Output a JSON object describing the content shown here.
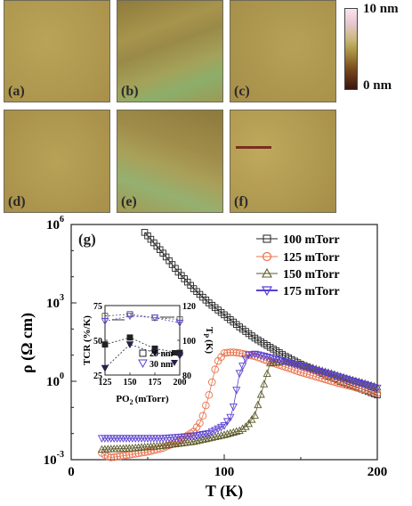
{
  "afm_panels": [
    {
      "label": "(a)",
      "base_color": "#b09a50"
    },
    {
      "label": "(b)",
      "base_color": "#9a8a48"
    },
    {
      "label": "(c)",
      "base_color": "#ad9850"
    },
    {
      "label": "(d)",
      "base_color": "#ad9851"
    },
    {
      "label": "(e)",
      "base_color": "#9f8d4a"
    },
    {
      "label": "(f)",
      "base_color": "#a8924d"
    }
  ],
  "colorbar": {
    "max_label": "10 nm",
    "min_label": "0 nm"
  },
  "chart_data": [
    {
      "type": "line",
      "panel_label": "(g)",
      "xlabel": "T (K)",
      "ylabel": "ρ (Ω cm)",
      "xlim": [
        0,
        200
      ],
      "ylim_log10": [
        -3,
        6
      ],
      "y_scale": "log",
      "x_ticks": [
        "0",
        "100",
        "200"
      ],
      "y_ticks": [
        "10",
        "10",
        "10",
        "10"
      ],
      "y_tick_exponents": [
        "-3",
        "0",
        "3",
        "6"
      ],
      "legend_position": "top-right",
      "series": [
        {
          "name": "100 mTorr",
          "color": "#222222",
          "marker": "square",
          "x": [
            48,
            60,
            70,
            80,
            90,
            100,
            110,
            120,
            130,
            140,
            150,
            160,
            170,
            180,
            190,
            200
          ],
          "y": [
            500000.0,
            80000.0,
            15000.0,
            3500,
            1000,
            350,
            120,
            45,
            20,
            9,
            4.5,
            2.5,
            1.4,
            0.8,
            0.5,
            0.3
          ]
        },
        {
          "name": "125 mTorr",
          "color": "#e8704a",
          "marker": "circle",
          "x": [
            20,
            25,
            30,
            40,
            50,
            60,
            70,
            80,
            85,
            90,
            95,
            100,
            105,
            110,
            120,
            130,
            140,
            150,
            160,
            170,
            180,
            190,
            200
          ],
          "y": [
            0.0018,
            0.0012,
            0.0013,
            0.0016,
            0.002,
            0.0028,
            0.005,
            0.012,
            0.03,
            0.3,
            5,
            12,
            13,
            12,
            9,
            5.5,
            3.5,
            2.2,
            1.5,
            1.0,
            0.7,
            0.5,
            0.35
          ]
        },
        {
          "name": "150 mTorr",
          "color": "#5e5a2a",
          "marker": "triangle-up",
          "x": [
            20,
            40,
            60,
            80,
            100,
            110,
            115,
            120,
            125,
            130,
            140,
            150,
            160,
            170,
            180,
            190,
            200
          ],
          "y": [
            0.0025,
            0.0028,
            0.0035,
            0.005,
            0.009,
            0.013,
            0.02,
            0.05,
            0.5,
            5,
            6,
            4.5,
            3,
            2,
            1.3,
            0.9,
            0.6
          ]
        },
        {
          "name": "175 mTorr",
          "color": "#5a3fd0",
          "marker": "triangle-down",
          "x": [
            20,
            40,
            60,
            80,
            90,
            100,
            105,
            110,
            115,
            120,
            130,
            140,
            150,
            160,
            170,
            180,
            190,
            200
          ],
          "y": [
            0.0065,
            0.0065,
            0.0065,
            0.008,
            0.01,
            0.02,
            0.05,
            2,
            10,
            11,
            8,
            5.5,
            3.8,
            2.6,
            1.8,
            1.2,
            0.8,
            0.55
          ]
        }
      ]
    },
    {
      "type": "line",
      "inset": true,
      "xlabel": "PO",
      "xlabel_sub": "2",
      "xlabel_unit": "(mTorr)",
      "ylabel_left": "TCR (%/K)",
      "ylabel_right": "T",
      "ylabel_right_sub": "P",
      "ylabel_right_unit": "(K)",
      "xlim": [
        125,
        200
      ],
      "ylim_left": [
        25,
        75
      ],
      "ylim_right": [
        80,
        120
      ],
      "x_ticks": [
        "125",
        "150",
        "175",
        "200"
      ],
      "y_ticks_left": [
        "25",
        "50",
        "75"
      ],
      "y_ticks_right": [
        "80",
        "100",
        "120"
      ],
      "series": [
        {
          "name": "20 nm",
          "axis": "right",
          "marker": "square",
          "x": [
            125,
            150,
            175,
            200
          ],
          "y": [
            114,
            115,
            113,
            112
          ]
        },
        {
          "name": "30 nm",
          "axis": "right",
          "marker": "triangle-down",
          "x": [
            125,
            150,
            175,
            200
          ],
          "y": [
            111,
            114,
            113,
            110
          ]
        },
        {
          "name": "TCR 20 nm",
          "axis": "left",
          "marker": "square",
          "x": [
            125,
            150,
            175,
            200
          ],
          "y": [
            47,
            52,
            44,
            41
          ]
        },
        {
          "name": "TCR 30 nm",
          "axis": "left",
          "marker": "triangle-down",
          "x": [
            125,
            150,
            175,
            200
          ],
          "y": [
            30,
            47,
            41,
            39
          ]
        }
      ]
    }
  ]
}
